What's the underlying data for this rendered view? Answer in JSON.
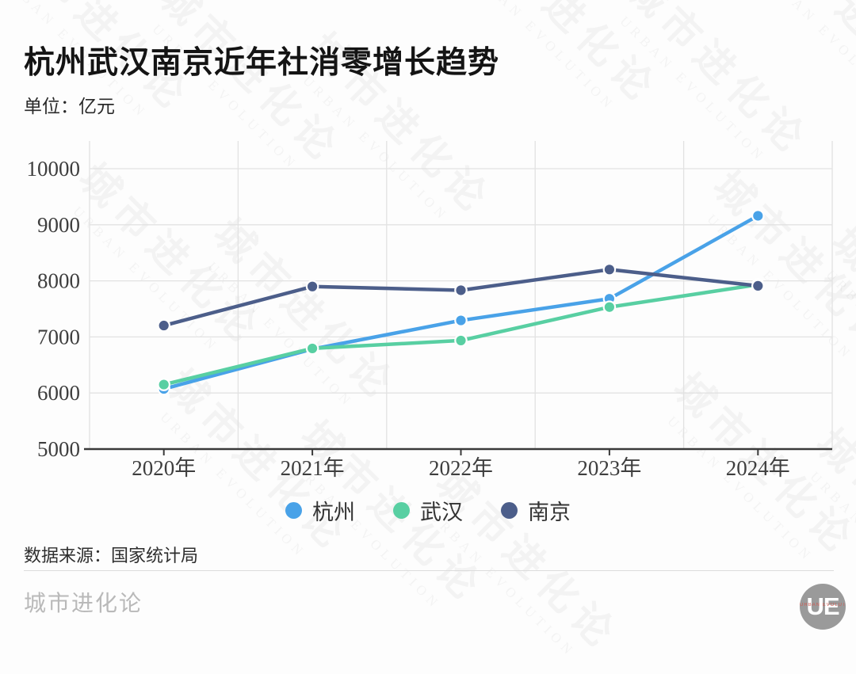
{
  "title": "杭州武汉南京近年社消零增长趋势",
  "unit_label": "单位：亿元",
  "source_note": "数据来源：国家统计局",
  "watermark": {
    "text_cn": "城市进化论",
    "text_en": "URBAN EVOLUTION"
  },
  "footer": {
    "brand": "城市进化论",
    "logo_text": "UE",
    "logo_subtext": "URBAN EVOLUTION"
  },
  "colors": {
    "hangzhou": "#49A2E8",
    "wuhan": "#58CFA2",
    "nanjing": "#4C5E8A",
    "grid": "#e2e2e2",
    "axis": "#3a3a3a",
    "tick_label": "#3e3e3e"
  },
  "chart_data": {
    "type": "line",
    "categories": [
      "2020年",
      "2021年",
      "2022年",
      "2023年",
      "2024年"
    ],
    "series": [
      {
        "name": "杭州",
        "key": "hangzhou",
        "color": "#49A2E8",
        "values": [
          6073,
          6783,
          7294,
          7681,
          9160
        ]
      },
      {
        "name": "武汉",
        "key": "wuhan",
        "color": "#58CFA2",
        "values": [
          6150,
          6795,
          6936,
          7532,
          7932
        ]
      },
      {
        "name": "南京",
        "key": "nanjing",
        "color": "#4C5E8A",
        "values": [
          7203,
          7899,
          7832,
          8202,
          7911
        ]
      }
    ],
    "ylim": [
      5000,
      10000
    ],
    "yticks": [
      5000,
      6000,
      7000,
      8000,
      9000,
      10000
    ],
    "grid": true,
    "legend_position": "bottom"
  }
}
